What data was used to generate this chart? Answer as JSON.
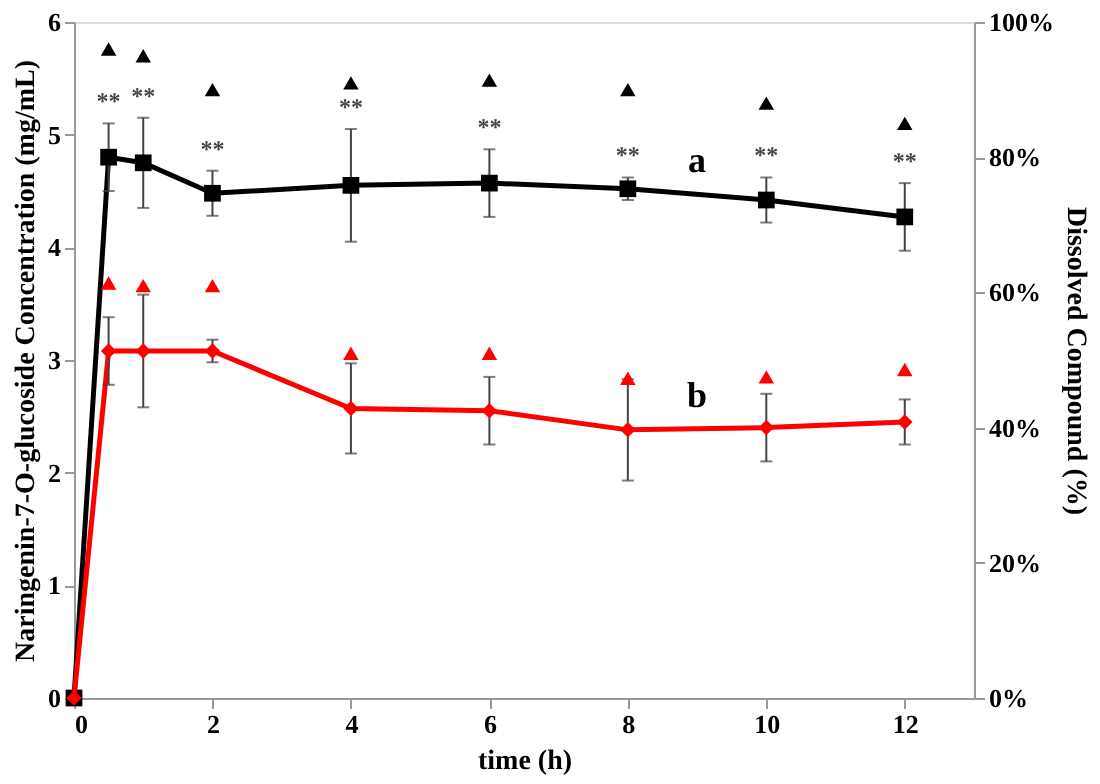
{
  "chart_data": {
    "type": "line",
    "xlabel": "time (h)",
    "ylabel": "Naringenin-7-O-glucoside Concentration (mg/mL)",
    "y2label": "Dissolved Compound (%)",
    "x": [
      0,
      0.5,
      1,
      2,
      4,
      6,
      8,
      10,
      12
    ],
    "xlim": [
      0,
      13
    ],
    "xticks": [
      0,
      2,
      4,
      6,
      8,
      10,
      12
    ],
    "ylim": [
      0,
      6
    ],
    "yticks": [
      {
        "value": 0,
        "label": "0"
      },
      {
        "value": 1,
        "label": "1"
      },
      {
        "value": 2,
        "label": "2"
      },
      {
        "value": 3,
        "label": "3"
      },
      {
        "value": 4,
        "label": "4"
      },
      {
        "value": 5,
        "label": "5"
      },
      {
        "value": 6,
        "label": "6"
      }
    ],
    "y2lim": [
      0,
      100
    ],
    "y2ticks": [
      {
        "value": 0,
        "label": "0%"
      },
      {
        "value": 20,
        "label": "20%"
      },
      {
        "value": 40,
        "label": "40%"
      },
      {
        "value": 60,
        "label": "60%"
      },
      {
        "value": 80,
        "label": "80%"
      },
      {
        "value": 100,
        "label": "100%"
      }
    ],
    "series": [
      {
        "name": "a",
        "color": "#000000",
        "marker": "square",
        "values": [
          0,
          4.8,
          4.75,
          4.48,
          4.55,
          4.57,
          4.52,
          4.42,
          4.27
        ],
        "errors": [
          null,
          0.3,
          0.4,
          0.2,
          0.5,
          0.3,
          0.1,
          0.2,
          0.3
        ]
      },
      {
        "name": "b",
        "color": "#ff0000",
        "marker": "diamond",
        "values": [
          0,
          3.08,
          3.08,
          3.08,
          2.57,
          2.55,
          2.38,
          2.4,
          2.45
        ],
        "errors": [
          null,
          0.3,
          0.5,
          0.1,
          0.4,
          0.3,
          0.45,
          0.3,
          0.2
        ]
      },
      {
        "type": "scatter",
        "axis": "y2",
        "color": "#000000",
        "marker": "triangle",
        "x": [
          0.5,
          1,
          2,
          4,
          6,
          8,
          10,
          12
        ],
        "values": [
          96,
          95,
          90,
          91,
          91.4,
          90,
          88,
          85
        ]
      },
      {
        "type": "scatter",
        "axis": "y2",
        "color": "#ff0000",
        "marker": "triangle",
        "x": [
          0.5,
          1,
          2,
          4,
          6,
          8,
          10,
          12
        ],
        "values": [
          61.4,
          61,
          61,
          51,
          51,
          47.3,
          47.5,
          48.6
        ]
      }
    ],
    "annotations": [
      {
        "text": "**",
        "x": 0.5,
        "y": 5.1
      },
      {
        "text": "**",
        "x": 1,
        "y": 5.15
      },
      {
        "text": "**",
        "x": 2,
        "y": 4.68
      },
      {
        "text": "**",
        "x": 4,
        "y": 5.05
      },
      {
        "text": "**",
        "x": 6,
        "y": 4.87
      },
      {
        "text": "**",
        "x": 8,
        "y": 4.62
      },
      {
        "text": "**",
        "x": 10,
        "y": 4.62
      },
      {
        "text": "**",
        "x": 12,
        "y": 4.57
      }
    ],
    "grid": false,
    "legend": false
  }
}
